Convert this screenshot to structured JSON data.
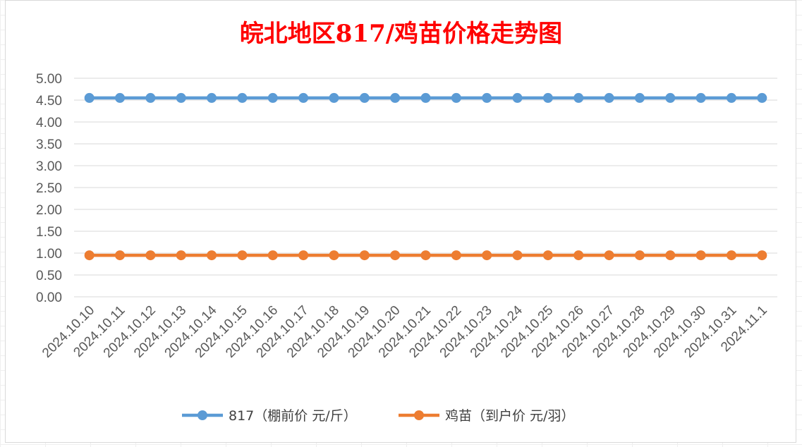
{
  "chart_data": {
    "type": "line",
    "title": "皖北地区817/鸡苗价格走势图",
    "xlabel": "",
    "ylabel": "",
    "ylim": [
      0,
      5
    ],
    "ytick_step": 0.5,
    "grid": "horizontal",
    "legend_position": "bottom",
    "categories": [
      "2024.10.10",
      "2024.10.11",
      "2024.10.12",
      "2024.10.13",
      "2024.10.14",
      "2024.10.15",
      "2024.10.16",
      "2024.10.17",
      "2024.10.18",
      "2024.10.19",
      "2024.10.20",
      "2024.10.21",
      "2024.10.22",
      "2024.10.23",
      "2024.10.24",
      "2024.10.25",
      "2024.10.26",
      "2024.10.27",
      "2024.10.28",
      "2024.10.29",
      "2024.10.30",
      "2024.10.31",
      "2024.11.1"
    ],
    "series": [
      {
        "name": "817（棚前价 元/斤）",
        "color": "#5b9bd5",
        "values": [
          4.55,
          4.55,
          4.55,
          4.55,
          4.55,
          4.55,
          4.55,
          4.55,
          4.55,
          4.55,
          4.55,
          4.55,
          4.55,
          4.55,
          4.55,
          4.55,
          4.55,
          4.55,
          4.55,
          4.55,
          4.55,
          4.55,
          4.55
        ]
      },
      {
        "name": "鸡苗（到户价 元/羽）",
        "color": "#ed7d31",
        "values": [
          0.95,
          0.95,
          0.95,
          0.95,
          0.95,
          0.95,
          0.95,
          0.95,
          0.95,
          0.95,
          0.95,
          0.95,
          0.95,
          0.95,
          0.95,
          0.95,
          0.95,
          0.95,
          0.95,
          0.95,
          0.95,
          0.95,
          0.95
        ]
      }
    ]
  }
}
